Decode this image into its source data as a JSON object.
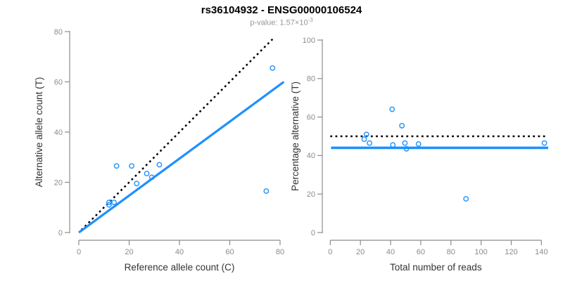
{
  "header": {
    "title": "rs36104932 - ENSG00000106524",
    "subtitle_prefix": "p-value: ",
    "subtitle_value": "1.57×10",
    "subtitle_exponent": "-3"
  },
  "colors": {
    "point_blue": "#1E90FF",
    "fit_blue": "#1E90FF",
    "reference_black": "#000000",
    "axis_gray": "#8C8C8C",
    "tick_text_gray": "#8C8C8C",
    "label_dark": "#333333",
    "title_black": "#000000",
    "subtitle_gray": "#979797"
  },
  "chart_data": [
    {
      "type": "scatter",
      "name": "allele-counts-scatter",
      "xlabel": "Reference allele count (C)",
      "ylabel": "Alternative allele count (T)",
      "xlim": [
        0,
        80
      ],
      "ylim": [
        0,
        80
      ],
      "xticks": [
        0,
        20,
        40,
        60,
        80
      ],
      "yticks": [
        0,
        20,
        40,
        60,
        80
      ],
      "grid": false,
      "points": [
        [
          12,
          11
        ],
        [
          12,
          12
        ],
        [
          14,
          12
        ],
        [
          15,
          26.5
        ],
        [
          21,
          26.5
        ],
        [
          23,
          19.5
        ],
        [
          27,
          23.5
        ],
        [
          29,
          22
        ],
        [
          32,
          27
        ],
        [
          74.5,
          16.5
        ],
        [
          77,
          65.5
        ]
      ],
      "lines": [
        {
          "name": "identity-line",
          "style": "dotted",
          "color": "#000000",
          "width": 2.5,
          "from": [
            1,
            1
          ],
          "to": [
            77,
            77
          ]
        },
        {
          "name": "fit-line",
          "style": "solid",
          "color": "#1E90FF",
          "width": 3.2,
          "from": [
            0,
            0
          ],
          "to": [
            81.5,
            60
          ]
        }
      ]
    },
    {
      "type": "scatter",
      "name": "percentage-alternative-scatter",
      "xlabel": "Total number of reads",
      "ylabel": "Percentage alternative (T)",
      "xlim": [
        0,
        140
      ],
      "ylim": [
        0,
        100
      ],
      "xticks": [
        0,
        20,
        40,
        60,
        80,
        100,
        120,
        140
      ],
      "yticks": [
        0,
        20,
        40,
        60,
        80,
        100
      ],
      "grid": false,
      "points": [
        [
          22.5,
          48.5
        ],
        [
          24,
          51
        ],
        [
          26,
          46.5
        ],
        [
          41,
          64
        ],
        [
          41.5,
          45.5
        ],
        [
          47.5,
          55.5
        ],
        [
          49.5,
          46.5
        ],
        [
          50.5,
          43.5
        ],
        [
          58.5,
          46
        ],
        [
          90,
          17.5
        ],
        [
          142,
          46.5
        ]
      ],
      "lines": [
        {
          "name": "reference-50pct-line",
          "style": "dotted",
          "color": "#000000",
          "width": 2.5,
          "from": [
            0,
            50
          ],
          "to": [
            143,
            50
          ]
        },
        {
          "name": "mean-line",
          "style": "solid",
          "color": "#1E90FF",
          "width": 3.6,
          "from": [
            0.5,
            44
          ],
          "to": [
            144.5,
            44
          ]
        }
      ]
    }
  ]
}
